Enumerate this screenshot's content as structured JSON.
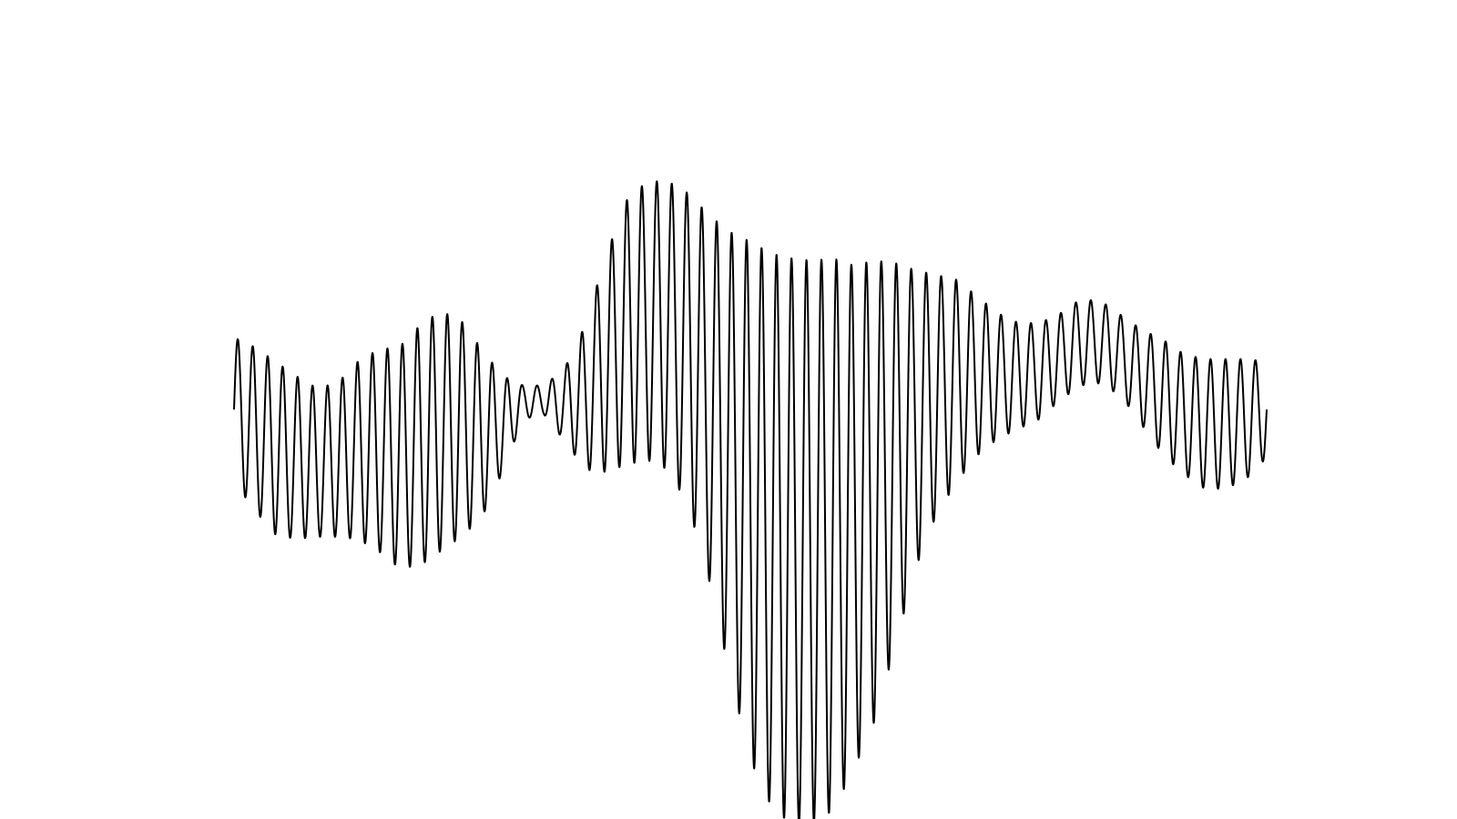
{
  "chart_data": {
    "type": "line",
    "title": "",
    "xlabel": "",
    "ylabel": "",
    "xlim": [
      0,
      1
    ],
    "ylim": [
      -1.25,
      1.25
    ],
    "grid": false,
    "axes_visible": false,
    "line_color": "#000000",
    "background_color": "#ffffff",
    "series": [
      {
        "name": "",
        "carrier_cycles": 69,
        "envelope": {
          "x": [
            0.0,
            0.02,
            0.04,
            0.06,
            0.08,
            0.1,
            0.12,
            0.14,
            0.16,
            0.18,
            0.2,
            0.22,
            0.24,
            0.26,
            0.28,
            0.3,
            0.32,
            0.34,
            0.36,
            0.38,
            0.4,
            0.42,
            0.44,
            0.46,
            0.48,
            0.5,
            0.52,
            0.54,
            0.56,
            0.58,
            0.6,
            0.62,
            0.64,
            0.66,
            0.68,
            0.7,
            0.72,
            0.74,
            0.76,
            0.78,
            0.8,
            0.82,
            0.84,
            0.86,
            0.88,
            0.9,
            0.92,
            0.94,
            0.96,
            0.98,
            1.0
          ],
          "amplitude": [
            0.3,
            0.34,
            0.36,
            0.34,
            0.31,
            0.32,
            0.37,
            0.42,
            0.46,
            0.5,
            0.5,
            0.45,
            0.35,
            0.2,
            0.07,
            0.06,
            0.15,
            0.3,
            0.45,
            0.55,
            0.58,
            0.6,
            0.65,
            0.76,
            0.92,
            1.08,
            1.15,
            1.18,
            1.17,
            1.15,
            1.05,
            0.96,
            0.8,
            0.62,
            0.5,
            0.42,
            0.33,
            0.26,
            0.22,
            0.2,
            0.18,
            0.18,
            0.17,
            0.17,
            0.2,
            0.24,
            0.25,
            0.27,
            0.27,
            0.25,
            0.2
          ],
          "offset": [
            0.0,
            -0.08,
            -0.16,
            -0.2,
            -0.22,
            -0.21,
            -0.17,
            -0.17,
            -0.2,
            -0.15,
            -0.09,
            -0.08,
            -0.1,
            -0.06,
            0.03,
            0.04,
            0.02,
            0.05,
            0.19,
            0.32,
            0.37,
            0.35,
            0.25,
            0.05,
            -0.18,
            -0.38,
            -0.5,
            -0.55,
            -0.55,
            -0.52,
            -0.45,
            -0.34,
            -0.19,
            -0.04,
            0.06,
            0.12,
            0.14,
            0.14,
            0.14,
            0.16,
            0.22,
            0.28,
            0.28,
            0.22,
            0.13,
            0.05,
            -0.02,
            -0.06,
            -0.06,
            -0.04,
            0.0
          ]
        }
      }
    ]
  }
}
